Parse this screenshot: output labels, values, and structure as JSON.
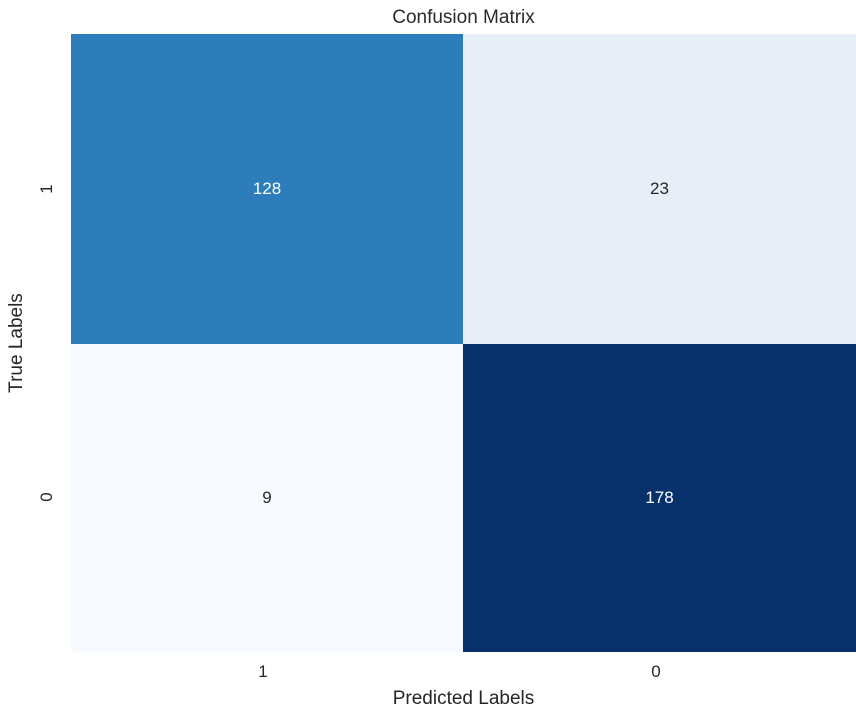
{
  "title": "Confusion Matrix",
  "axes": {
    "x_label": "Predicted Labels",
    "y_label": "True Labels",
    "x_ticks": [
      "1",
      "0"
    ],
    "y_ticks": [
      "1",
      "0"
    ]
  },
  "colors": {
    "background": "#ffffff",
    "text": "#262626",
    "annotation_light": "#ffffff",
    "annotation_dark": "#262626"
  },
  "chart_data": {
    "type": "heatmap",
    "title": "Confusion Matrix",
    "xlabel": "Predicted Labels",
    "ylabel": "True Labels",
    "x_categories": [
      "1",
      "0"
    ],
    "y_categories": [
      "1",
      "0"
    ],
    "values": [
      [
        128,
        23
      ],
      [
        9,
        178
      ]
    ],
    "colormap": "Blues",
    "colorbar": false,
    "legend": "none",
    "grid": false,
    "cells": [
      {
        "row": "1",
        "col": "1",
        "value": "128",
        "bg": "#2d7dbb",
        "text_color": "#ffffff"
      },
      {
        "row": "1",
        "col": "0",
        "value": "23",
        "bg": "#e7eef8",
        "text_color": "#262626"
      },
      {
        "row": "0",
        "col": "1",
        "value": "9",
        "bg": "#f7fbff",
        "text_color": "#262626"
      },
      {
        "row": "0",
        "col": "0",
        "value": "178",
        "bg": "#08306b",
        "text_color": "#ffffff"
      }
    ]
  }
}
